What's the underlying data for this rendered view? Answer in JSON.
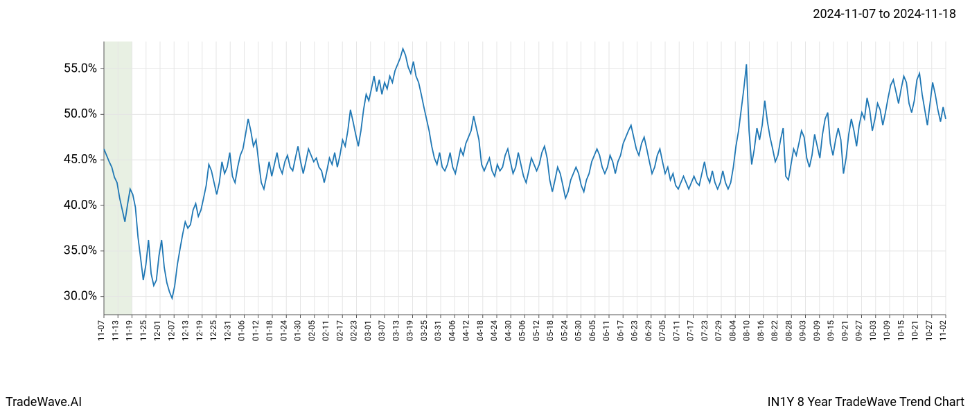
{
  "date_range": "2024-11-07 to 2024-11-18",
  "footer_left": "TradeWave.AI",
  "footer_right": "IN1Y 8 Year TradeWave Trend Chart",
  "chart": {
    "type": "line",
    "background_color": "#ffffff",
    "grid_color": "#e5e5e5",
    "axis_color": "#555555",
    "line_color": "#1f77b4",
    "line_width": 1.8,
    "highlight_fill": "#d9e6d0",
    "highlight_opacity": 0.6,
    "ylim": [
      28,
      58
    ],
    "y_ticks": [
      30.0,
      35.0,
      40.0,
      45.0,
      50.0,
      55.0
    ],
    "y_tick_labels": [
      "30.0%",
      "35.0%",
      "40.0%",
      "45.0%",
      "50.0%",
      "55.0%"
    ],
    "y_label_fontsize": 18,
    "x_ticks": [
      "11-07",
      "11-13",
      "11-19",
      "11-25",
      "12-01",
      "12-07",
      "12-13",
      "12-19",
      "12-25",
      "12-31",
      "01-06",
      "01-12",
      "01-18",
      "01-24",
      "01-30",
      "02-05",
      "02-11",
      "02-17",
      "02-23",
      "03-01",
      "03-07",
      "03-13",
      "03-19",
      "03-25",
      "03-31",
      "04-06",
      "04-12",
      "04-18",
      "04-24",
      "04-30",
      "05-06",
      "05-12",
      "05-18",
      "05-24",
      "05-30",
      "06-05",
      "06-11",
      "06-17",
      "06-23",
      "06-29",
      "07-05",
      "07-11",
      "07-17",
      "07-23",
      "07-29",
      "08-04",
      "08-10",
      "08-16",
      "08-22",
      "08-28",
      "09-03",
      "09-09",
      "09-15",
      "09-21",
      "09-27",
      "10-03",
      "10-09",
      "10-15",
      "10-21",
      "10-27",
      "11-02"
    ],
    "x_label_fontsize": 12,
    "highlight_band": {
      "start_tick": "11-07",
      "end_tick": "11-19"
    },
    "values": [
      46.2,
      45.5,
      44.8,
      44.2,
      43.1,
      42.5,
      40.8,
      39.5,
      38.2,
      40.1,
      41.8,
      41.2,
      39.8,
      36.5,
      34.2,
      31.8,
      33.5,
      36.2,
      32.5,
      31.2,
      31.8,
      34.5,
      36.2,
      33.2,
      31.5,
      30.5,
      29.8,
      31.2,
      33.5,
      35.2,
      36.8,
      38.2,
      37.5,
      37.9,
      39.5,
      40.2,
      38.8,
      39.5,
      40.8,
      42.2,
      44.5,
      43.8,
      42.5,
      41.2,
      42.5,
      44.8,
      43.5,
      44.2,
      45.8,
      43.2,
      42.5,
      44.2,
      45.5,
      46.2,
      47.8,
      49.5,
      48.2,
      46.5,
      47.2,
      44.8,
      42.5,
      41.8,
      43.2,
      44.8,
      43.2,
      44.5,
      45.8,
      44.2,
      43.5,
      44.8,
      45.5,
      44.2,
      43.8,
      45.2,
      46.5,
      44.8,
      43.5,
      44.8,
      46.2,
      45.5,
      44.8,
      45.2,
      44.2,
      43.8,
      42.5,
      43.8,
      45.2,
      44.5,
      45.8,
      44.2,
      45.5,
      47.2,
      46.5,
      48.2,
      50.5,
      49.2,
      47.8,
      46.5,
      48.2,
      50.5,
      52.2,
      51.5,
      52.8,
      54.2,
      52.5,
      53.8,
      52.2,
      53.5,
      52.8,
      54.2,
      53.5,
      54.8,
      55.5,
      56.2,
      57.2,
      56.5,
      55.2,
      54.5,
      55.8,
      54.2,
      53.5,
      52.2,
      50.8,
      49.5,
      48.2,
      46.5,
      45.2,
      44.5,
      45.8,
      44.2,
      43.8,
      44.5,
      45.8,
      44.2,
      43.5,
      44.8,
      46.2,
      45.5,
      46.8,
      47.5,
      48.2,
      49.8,
      48.5,
      47.2,
      44.5,
      43.8,
      44.5,
      45.2,
      43.8,
      43.2,
      44.5,
      43.8,
      44.2,
      45.5,
      46.2,
      44.8,
      43.5,
      44.2,
      45.8,
      44.5,
      43.2,
      42.5,
      43.8,
      45.2,
      44.5,
      43.8,
      44.5,
      45.8,
      46.5,
      45.2,
      42.8,
      41.5,
      42.8,
      44.2,
      43.5,
      42.2,
      40.8,
      41.5,
      42.8,
      43.5,
      44.2,
      43.5,
      42.2,
      41.5,
      42.8,
      43.5,
      44.8,
      45.5,
      46.2,
      45.5,
      44.2,
      43.5,
      44.2,
      45.5,
      44.8,
      43.5,
      44.8,
      45.5,
      46.8,
      47.5,
      48.2,
      48.8,
      47.5,
      46.2,
      45.5,
      46.8,
      47.5,
      46.2,
      44.8,
      43.5,
      44.2,
      45.5,
      46.2,
      44.8,
      43.5,
      44.2,
      42.8,
      43.5,
      42.2,
      41.8,
      42.5,
      43.2,
      42.5,
      41.8,
      42.5,
      43.2,
      42.5,
      42.2,
      43.5,
      44.8,
      43.2,
      42.5,
      43.8,
      42.5,
      41.8,
      42.5,
      43.8,
      42.5,
      41.8,
      42.5,
      44.2,
      46.5,
      48.2,
      50.5,
      52.8,
      55.5,
      48.2,
      44.5,
      46.2,
      48.5,
      47.2,
      48.8,
      51.5,
      49.2,
      47.5,
      46.2,
      44.8,
      45.5,
      47.2,
      48.5,
      43.2,
      42.8,
      44.5,
      46.2,
      45.5,
      46.8,
      48.2,
      47.5,
      45.2,
      44.2,
      45.5,
      47.8,
      46.5,
      45.2,
      47.8,
      49.5,
      50.2,
      46.8,
      45.5,
      47.2,
      48.5,
      47.2,
      43.5,
      45.2,
      47.8,
      49.5,
      48.2,
      46.5,
      48.8,
      50.2,
      49.5,
      51.8,
      50.5,
      48.2,
      49.5,
      51.2,
      50.5,
      48.8,
      50.2,
      51.8,
      53.2,
      53.8,
      52.5,
      51.2,
      52.8,
      54.2,
      53.5,
      51.2,
      50.2,
      51.5,
      53.8,
      54.5,
      52.2,
      50.5,
      48.8,
      51.2,
      53.5,
      52.2,
      50.5,
      49.2,
      50.8,
      49.5
    ]
  }
}
